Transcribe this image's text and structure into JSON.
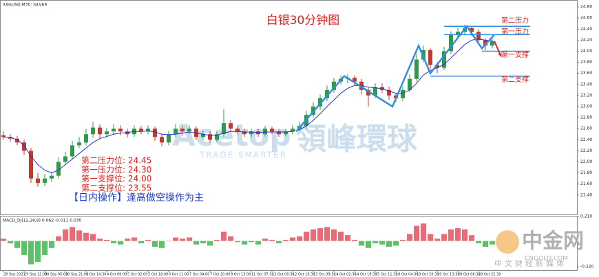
{
  "chart_data": {
    "type": "candlestick",
    "symbol_label": "XAGUSD,M30: SILVER",
    "title": "白银30分钟图",
    "up_color": "#2e9a4a",
    "down_color": "#c23a2e",
    "ohlc": [
      [
        22.48,
        22.55,
        22.4,
        22.45
      ],
      [
        22.45,
        22.5,
        22.36,
        22.42
      ],
      [
        22.42,
        22.47,
        22.3,
        22.35
      ],
      [
        22.35,
        22.4,
        22.12,
        22.2
      ],
      [
        22.2,
        22.25,
        21.62,
        21.7
      ],
      [
        21.7,
        21.8,
        21.55,
        21.62
      ],
      [
        21.62,
        21.78,
        21.56,
        21.7
      ],
      [
        21.7,
        21.82,
        21.64,
        21.75
      ],
      [
        21.75,
        22.08,
        21.7,
        22.0
      ],
      [
        22.0,
        22.18,
        21.94,
        22.1
      ],
      [
        22.1,
        22.38,
        22.05,
        22.3
      ],
      [
        22.3,
        22.45,
        22.25,
        22.35
      ],
      [
        22.35,
        22.6,
        22.3,
        22.5
      ],
      [
        22.5,
        22.72,
        22.44,
        22.62
      ],
      [
        22.62,
        22.68,
        22.42,
        22.5
      ],
      [
        22.5,
        22.62,
        22.44,
        22.55
      ],
      [
        22.55,
        22.68,
        22.5,
        22.6
      ],
      [
        22.6,
        22.66,
        22.48,
        22.55
      ],
      [
        22.55,
        22.6,
        22.44,
        22.5
      ],
      [
        22.5,
        22.66,
        22.45,
        22.6
      ],
      [
        22.6,
        22.65,
        22.5,
        22.55
      ],
      [
        22.55,
        22.66,
        22.5,
        22.6
      ],
      [
        22.6,
        22.64,
        22.38,
        22.45
      ],
      [
        22.45,
        22.5,
        22.28,
        22.35
      ],
      [
        22.35,
        22.56,
        22.3,
        22.5
      ],
      [
        22.5,
        22.68,
        22.45,
        22.6
      ],
      [
        22.6,
        22.65,
        22.48,
        22.55
      ],
      [
        22.55,
        22.66,
        22.5,
        22.6
      ],
      [
        22.6,
        22.64,
        22.4,
        22.45
      ],
      [
        22.45,
        22.56,
        22.4,
        22.5
      ],
      [
        22.5,
        22.55,
        22.35,
        22.4
      ],
      [
        22.4,
        22.56,
        22.36,
        22.5
      ],
      [
        22.5,
        22.95,
        22.46,
        22.7
      ],
      [
        22.7,
        22.76,
        22.55,
        22.6
      ],
      [
        22.6,
        22.65,
        22.5,
        22.55
      ],
      [
        22.55,
        22.6,
        22.45,
        22.5
      ],
      [
        22.5,
        22.6,
        22.45,
        22.55
      ],
      [
        22.55,
        22.6,
        22.45,
        22.5
      ],
      [
        22.5,
        22.65,
        22.46,
        22.6
      ],
      [
        22.6,
        22.64,
        22.5,
        22.55
      ],
      [
        22.55,
        22.6,
        22.45,
        22.5
      ],
      [
        22.5,
        22.6,
        22.46,
        22.55
      ],
      [
        22.55,
        22.66,
        22.5,
        22.6
      ],
      [
        22.6,
        22.72,
        22.55,
        22.65
      ],
      [
        22.65,
        22.92,
        22.6,
        22.85
      ],
      [
        22.85,
        23.08,
        22.8,
        23.0
      ],
      [
        23.0,
        23.22,
        22.94,
        23.15
      ],
      [
        23.15,
        23.38,
        23.1,
        23.3
      ],
      [
        23.3,
        23.52,
        23.25,
        23.45
      ],
      [
        23.45,
        23.56,
        23.4,
        23.5
      ],
      [
        23.5,
        23.58,
        23.42,
        23.52
      ],
      [
        23.52,
        23.56,
        23.38,
        23.45
      ],
      [
        23.45,
        23.5,
        23.22,
        23.3
      ],
      [
        23.3,
        23.35,
        23.0,
        23.2
      ],
      [
        23.2,
        23.42,
        23.15,
        23.35
      ],
      [
        23.35,
        23.42,
        23.24,
        23.3
      ],
      [
        23.3,
        23.36,
        23.12,
        23.2
      ],
      [
        23.2,
        23.25,
        23.08,
        23.15
      ],
      [
        23.15,
        23.36,
        23.1,
        23.3
      ],
      [
        23.3,
        23.58,
        23.26,
        23.5
      ],
      [
        23.5,
        23.95,
        23.45,
        23.85
      ],
      [
        23.85,
        24.1,
        23.8,
        24.02
      ],
      [
        24.02,
        24.06,
        23.68,
        23.75
      ],
      [
        23.75,
        23.8,
        23.6,
        23.7
      ],
      [
        23.7,
        24.08,
        23.66,
        24.0
      ],
      [
        24.0,
        24.36,
        23.95,
        24.3
      ],
      [
        24.3,
        24.42,
        24.24,
        24.35
      ],
      [
        24.35,
        24.48,
        24.3,
        24.42
      ],
      [
        24.42,
        24.46,
        24.28,
        24.35
      ],
      [
        24.35,
        24.4,
        24.12,
        24.2
      ],
      [
        24.2,
        24.24,
        24.02,
        24.1
      ],
      [
        24.1,
        24.26,
        24.05,
        24.18
      ]
    ],
    "ma": {
      "color": "#2233cc",
      "values": [
        22.45,
        22.44,
        22.4,
        22.3,
        22.1,
        21.95,
        21.85,
        21.8,
        21.85,
        21.95,
        22.05,
        22.15,
        22.25,
        22.35,
        22.42,
        22.46,
        22.5,
        22.52,
        22.53,
        22.55,
        22.55,
        22.56,
        22.54,
        22.5,
        22.49,
        22.5,
        22.52,
        22.54,
        22.52,
        22.5,
        22.48,
        22.48,
        22.52,
        22.55,
        22.55,
        22.54,
        22.54,
        22.53,
        22.54,
        22.54,
        22.54,
        22.54,
        22.55,
        22.58,
        22.65,
        22.75,
        22.87,
        23.0,
        23.12,
        23.24,
        23.33,
        23.38,
        23.38,
        23.35,
        23.34,
        23.32,
        23.28,
        23.24,
        23.24,
        23.3,
        23.42,
        23.57,
        23.65,
        23.7,
        23.76,
        23.88,
        24.0,
        24.12,
        24.2,
        24.22,
        24.2,
        24.19
      ]
    },
    "zigzag": {
      "color": "#2f8fe0",
      "x": [
        42.5,
        49.5,
        56.5,
        60.3,
        62,
        67.3,
        69.5,
        71.3
      ],
      "values": [
        22.55,
        23.55,
        23.0,
        24.1,
        23.6,
        24.45,
        24.05,
        24.3
      ]
    },
    "arrow": {
      "color": "#e0201c",
      "x": [
        71.3,
        72.3
      ],
      "values": [
        24.18,
        23.9
      ]
    },
    "ylim": [
      21.05,
      24.925
    ],
    "yticks": [
      {
        "value": 24.8,
        "label": "24.80"
      },
      {
        "value": 24.6,
        "label": "24.60"
      },
      {
        "value": 24.4,
        "label": "24.40"
      },
      {
        "value": 24.2,
        "label": "24.20"
      },
      {
        "value": 24.0,
        "label": "24.00"
      },
      {
        "value": 23.8,
        "label": "23.80"
      },
      {
        "value": 23.6,
        "label": "23.60"
      },
      {
        "value": 23.4,
        "label": "23.40"
      },
      {
        "value": 23.2,
        "label": "23.20"
      },
      {
        "value": 23.0,
        "label": "23.00"
      },
      {
        "value": 22.8,
        "label": "22.80"
      },
      {
        "value": 22.6,
        "label": "22.60"
      },
      {
        "value": 22.4,
        "label": "22.40"
      },
      {
        "value": 22.2,
        "label": "22.20"
      },
      {
        "value": 22.0,
        "label": "22.00"
      },
      {
        "value": 21.8,
        "label": "21.80"
      },
      {
        "value": 21.6,
        "label": "21.60"
      },
      {
        "value": 21.4,
        "label": "21.40"
      }
    ],
    "xticks": [
      {
        "value": 0,
        "label": "28 Sep 2021"
      },
      {
        "value": 3,
        "label": "29 Sep 12:00"
      },
      {
        "value": 6,
        "label": "30 Sep 05:00"
      },
      {
        "value": 9,
        "label": "30 Sep 21:00"
      },
      {
        "value": 12,
        "label": "1 Oct 14:30"
      },
      {
        "value": 15,
        "label": "4 Oct 09:00"
      },
      {
        "value": 18,
        "label": "5 Oct 02:00"
      },
      {
        "value": 21,
        "label": "5 Oct 18:00"
      },
      {
        "value": 24,
        "label": "6 Oct 11:00"
      },
      {
        "value": 27,
        "label": "7 Oct 04:00"
      },
      {
        "value": 30,
        "label": "7 Oct 20:00"
      },
      {
        "value": 33,
        "label": "8 Oct 13:00"
      },
      {
        "value": 36,
        "label": "11 Oct 07:30"
      },
      {
        "value": 39,
        "label": "12 Oct 00:30"
      },
      {
        "value": 42,
        "label": "12 Oct 16:30"
      },
      {
        "value": 45,
        "label": "13 Oct 09:30"
      },
      {
        "value": 48,
        "label": "14 Oct 02:30"
      },
      {
        "value": 51,
        "label": "14 Oct 18:30"
      },
      {
        "value": 54,
        "label": "15 Oct 11:30"
      },
      {
        "value": 57,
        "label": "18 Oct 04:30"
      },
      {
        "value": 60,
        "label": "18 Oct 20:30"
      },
      {
        "value": 63,
        "label": "19 Oct 13:30"
      },
      {
        "value": 66,
        "label": "20 Oct 06:30"
      },
      {
        "value": 69,
        "label": "20 Oct 22:30"
      }
    ],
    "levels": {
      "color": "#2f8fe0",
      "label_color": "#e0201c",
      "names": [
        "第二压力",
        "第一压力",
        "第一支撑",
        "第二支撑"
      ],
      "values": [
        24.45,
        24.3,
        24.0,
        23.55
      ]
    },
    "notes": [
      "第二压力位: 24.45",
      "第一压力位: 24.30",
      "第一支撑位: 24.00",
      "第二支撑位: 23.55"
    ],
    "strategy_note": "【日内操作】逢高做空操作为主",
    "indicator": {
      "type": "bar",
      "label": "MACD_DJ(12,26,9) 0.062 -0.011 0.030",
      "up_color": "#e8505a",
      "down_color": "#3cb84a",
      "values": [
        0.02,
        -0.02,
        -0.06,
        -0.12,
        -0.2,
        -0.18,
        -0.12,
        -0.06,
        0.04,
        0.1,
        0.12,
        0.09,
        0.07,
        0.06,
        0.02,
        0.01,
        -0.02,
        -0.03,
        0.02,
        0.03,
        -0.02,
        0.01,
        -0.05,
        -0.06,
        0.0,
        0.03,
        0.02,
        0.03,
        -0.03,
        -0.02,
        -0.04,
        0.01,
        0.08,
        0.04,
        -0.01,
        -0.03,
        -0.01,
        -0.03,
        0.02,
        0.01,
        -0.02,
        0.01,
        0.03,
        0.04,
        0.08,
        0.1,
        0.11,
        0.12,
        0.1,
        0.08,
        0.05,
        0.01,
        -0.04,
        -0.06,
        -0.02,
        -0.03,
        -0.05,
        -0.04,
        0.01,
        0.06,
        0.13,
        0.15,
        0.06,
        0.02,
        0.06,
        0.1,
        0.11,
        0.1,
        0.05,
        -0.02,
        -0.05,
        -0.03
      ],
      "ylim": [
        -0.25,
        0.21
      ],
      "yticks": [
        {
          "value": 0.21,
          "label": "0.210"
        },
        {
          "value": -0.22,
          "label": "-0.220"
        }
      ]
    },
    "watermarks": [
      "Acetop",
      "領峰環球",
      "TRADE SMARTER",
      "中金网",
      "CNGOLD.COM",
      "中文财经新媒体"
    ]
  }
}
